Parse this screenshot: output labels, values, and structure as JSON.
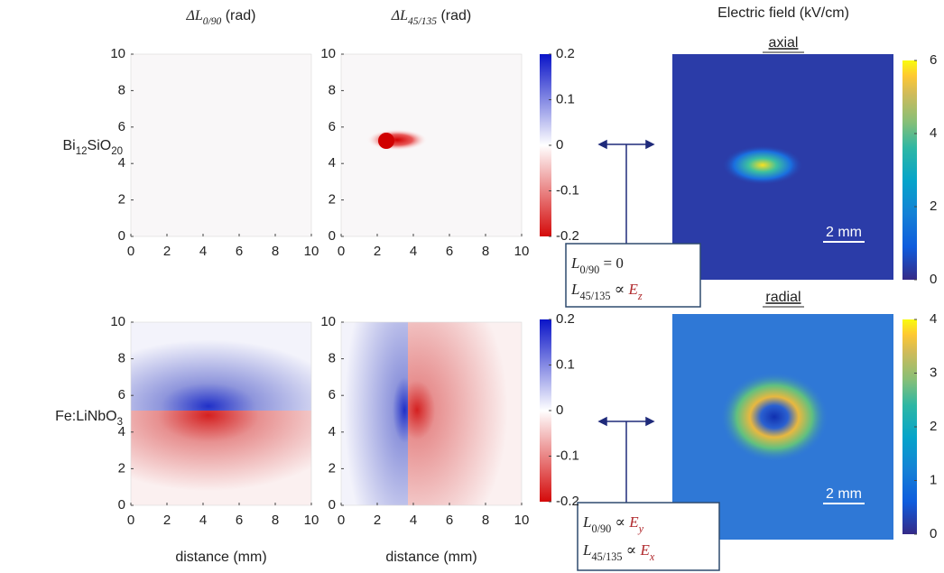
{
  "column_titles": [
    {
      "segments": [
        {
          "text": "ΔL",
          "math": true
        },
        {
          "text": "0/90",
          "math": true,
          "sub": true
        },
        {
          "text": " (rad)"
        }
      ]
    },
    {
      "segments": [
        {
          "text": "ΔL",
          "math": true
        },
        {
          "text": "45/135",
          "math": true,
          "sub": true
        },
        {
          "text": " (rad)"
        }
      ]
    }
  ],
  "rows": [
    {
      "segments": [
        {
          "text": "Bi"
        },
        {
          "text": "12",
          "sub": true
        },
        {
          "text": "SiO"
        },
        {
          "text": "20",
          "sub": true
        }
      ]
    },
    {
      "segments": [
        {
          "text": "Fe:LiNbO"
        },
        {
          "text": "3",
          "sub": true
        }
      ]
    }
  ],
  "panels": {
    "xlim": [
      0,
      10
    ],
    "ylim": [
      0,
      10
    ],
    "xticks": [
      0,
      2,
      4,
      6,
      8,
      10
    ],
    "yticks": [
      0,
      2,
      4,
      6,
      8,
      10
    ],
    "x_label": "distance (mm)"
  },
  "colorbar": {
    "lim": [
      -0.2,
      0.2
    ],
    "ticks": [
      -0.2,
      -0.1,
      0,
      0.1,
      0.2
    ]
  },
  "field": {
    "title": "Electric field (kV/cm)",
    "maps": [
      {
        "name": "axial",
        "lim": [
          0,
          6
        ],
        "ticks": [
          0,
          2,
          4,
          6
        ],
        "scale_bar": "2 mm"
      },
      {
        "name": "radial",
        "lim": [
          0,
          4
        ],
        "ticks": [
          0,
          1,
          2,
          3,
          4
        ],
        "scale_bar": "2 mm"
      }
    ]
  },
  "relations": [
    [
      {
        "segments": [
          {
            "text": "L",
            "math": true
          },
          {
            "text": "0/90",
            "sub": true
          },
          {
            "text": " = 0"
          }
        ]
      },
      {
        "segments": [
          {
            "text": "L",
            "math": true
          },
          {
            "text": "45/135",
            "sub": true
          },
          {
            "text": " ∝ "
          },
          {
            "text": "E",
            "math": true,
            "color": "#b0282c"
          },
          {
            "text": "z",
            "math": true,
            "sub": true,
            "color": "#b0282c"
          }
        ]
      }
    ],
    [
      {
        "segments": [
          {
            "text": "L",
            "math": true
          },
          {
            "text": "0/90",
            "sub": true
          },
          {
            "text": " ∝ "
          },
          {
            "text": "E",
            "math": true,
            "color": "#b0282c"
          },
          {
            "text": "y",
            "math": true,
            "sub": true,
            "color": "#b0282c"
          }
        ]
      },
      {
        "segments": [
          {
            "text": "L",
            "math": true
          },
          {
            "text": "45/135",
            "sub": true
          },
          {
            "text": " ∝ "
          },
          {
            "text": "E",
            "math": true,
            "color": "#b0282c"
          },
          {
            "text": "x",
            "math": true,
            "sub": true,
            "color": "#b0282c"
          }
        ]
      }
    ]
  ]
}
